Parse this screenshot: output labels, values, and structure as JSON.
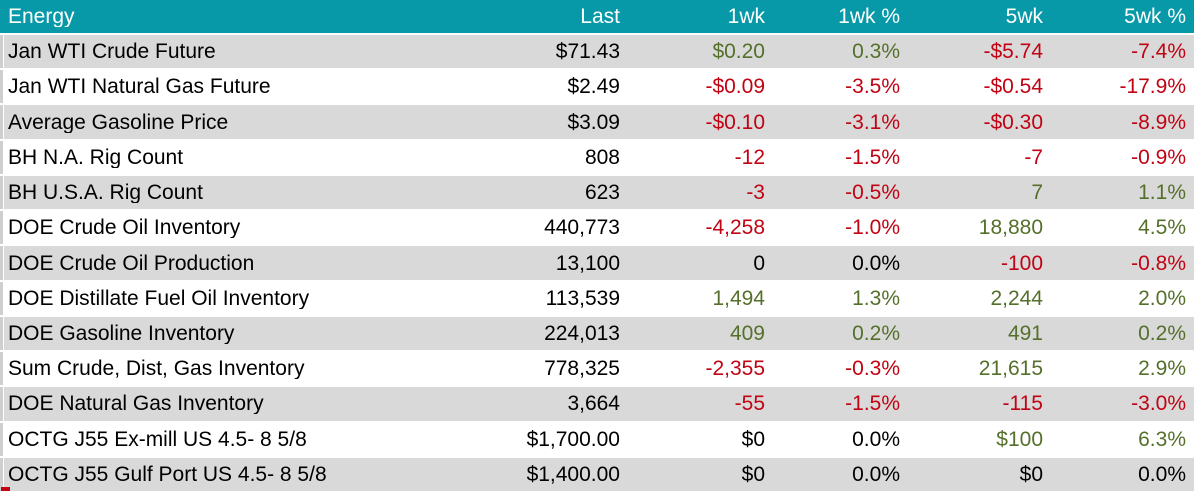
{
  "chart_data": {
    "type": "table",
    "title": "Energy",
    "columns": [
      "Energy",
      "Last",
      "1wk",
      "1wk %",
      "5wk",
      "5wk %"
    ],
    "rows": [
      [
        "Jan WTI Crude Future",
        71.43,
        0.2,
        0.3,
        -5.74,
        -7.4
      ],
      [
        "Jan WTI Natural Gas Future",
        2.49,
        -0.09,
        -3.5,
        -0.54,
        -17.9
      ],
      [
        "Average Gasoline Price",
        3.09,
        -0.1,
        -3.1,
        -0.3,
        -8.9
      ],
      [
        "BH N.A. Rig Count",
        808,
        -12,
        -1.5,
        -7,
        -0.9
      ],
      [
        "BH U.S.A. Rig Count",
        623,
        -3,
        -0.5,
        7,
        1.1
      ],
      [
        "DOE Crude Oil Inventory",
        440773,
        -4258,
        -1.0,
        18880,
        4.5
      ],
      [
        "DOE Crude Oil Production",
        13100,
        0,
        0.0,
        -100,
        -0.8
      ],
      [
        "DOE Distillate Fuel Oil Inventory",
        113539,
        1494,
        1.3,
        2244,
        2.0
      ],
      [
        "DOE Gasoline Inventory",
        224013,
        409,
        0.2,
        491,
        0.2
      ],
      [
        "Sum Crude, Dist, Gas Inventory",
        778325,
        -2355,
        -0.3,
        21615,
        2.9
      ],
      [
        "DOE Natural Gas Inventory",
        3664,
        -55,
        -1.5,
        -115,
        -3.0
      ],
      [
        "OCTG J55 Ex-mill US 4.5- 8 5/8",
        1700.0,
        0,
        0.0,
        100,
        6.3
      ],
      [
        "OCTG J55 Gulf Port US 4.5- 8 5/8",
        1400.0,
        0,
        0.0,
        0,
        0.0
      ]
    ]
  },
  "table": {
    "columns": [
      {
        "key": "name",
        "label": "Energy"
      },
      {
        "key": "last",
        "label": "Last"
      },
      {
        "key": "wk1",
        "label": "1wk"
      },
      {
        "key": "wk1pct",
        "label": "1wk %"
      },
      {
        "key": "wk5",
        "label": "5wk"
      },
      {
        "key": "wk5pct",
        "label": "5wk %"
      }
    ],
    "rows": [
      {
        "name": "Jan WTI Crude Future",
        "values": [
          {
            "text": "$71.43",
            "tone": "neutral"
          },
          {
            "text": "$0.20",
            "tone": "positive"
          },
          {
            "text": "0.3%",
            "tone": "positive"
          },
          {
            "text": "-$5.74",
            "tone": "negative"
          },
          {
            "text": "-7.4%",
            "tone": "negative"
          }
        ]
      },
      {
        "name": "Jan WTI Natural Gas Future",
        "values": [
          {
            "text": "$2.49",
            "tone": "neutral"
          },
          {
            "text": "-$0.09",
            "tone": "negative"
          },
          {
            "text": "-3.5%",
            "tone": "negative"
          },
          {
            "text": "-$0.54",
            "tone": "negative"
          },
          {
            "text": "-17.9%",
            "tone": "negative"
          }
        ]
      },
      {
        "name": "Average Gasoline Price",
        "values": [
          {
            "text": "$3.09",
            "tone": "neutral"
          },
          {
            "text": "-$0.10",
            "tone": "negative"
          },
          {
            "text": "-3.1%",
            "tone": "negative"
          },
          {
            "text": "-$0.30",
            "tone": "negative"
          },
          {
            "text": "-8.9%",
            "tone": "negative"
          }
        ]
      },
      {
        "name": "BH N.A. Rig Count",
        "values": [
          {
            "text": "808",
            "tone": "neutral"
          },
          {
            "text": "-12",
            "tone": "negative"
          },
          {
            "text": "-1.5%",
            "tone": "negative"
          },
          {
            "text": "-7",
            "tone": "negative"
          },
          {
            "text": "-0.9%",
            "tone": "negative"
          }
        ]
      },
      {
        "name": "BH U.S.A. Rig Count",
        "values": [
          {
            "text": "623",
            "tone": "neutral"
          },
          {
            "text": "-3",
            "tone": "negative"
          },
          {
            "text": "-0.5%",
            "tone": "negative"
          },
          {
            "text": "7",
            "tone": "positive"
          },
          {
            "text": "1.1%",
            "tone": "positive"
          }
        ]
      },
      {
        "name": "DOE Crude Oil Inventory",
        "values": [
          {
            "text": "440,773",
            "tone": "neutral"
          },
          {
            "text": "-4,258",
            "tone": "negative"
          },
          {
            "text": "-1.0%",
            "tone": "negative"
          },
          {
            "text": "18,880",
            "tone": "positive"
          },
          {
            "text": "4.5%",
            "tone": "positive"
          }
        ]
      },
      {
        "name": "DOE Crude Oil Production",
        "values": [
          {
            "text": "13,100",
            "tone": "neutral"
          },
          {
            "text": "0",
            "tone": "neutral"
          },
          {
            "text": "0.0%",
            "tone": "neutral"
          },
          {
            "text": "-100",
            "tone": "negative"
          },
          {
            "text": "-0.8%",
            "tone": "negative"
          }
        ]
      },
      {
        "name": "DOE Distillate Fuel Oil Inventory",
        "values": [
          {
            "text": "113,539",
            "tone": "neutral"
          },
          {
            "text": "1,494",
            "tone": "positive"
          },
          {
            "text": "1.3%",
            "tone": "positive"
          },
          {
            "text": "2,244",
            "tone": "positive"
          },
          {
            "text": "2.0%",
            "tone": "positive"
          }
        ]
      },
      {
        "name": "DOE Gasoline Inventory",
        "values": [
          {
            "text": "224,013",
            "tone": "neutral"
          },
          {
            "text": "409",
            "tone": "positive"
          },
          {
            "text": "0.2%",
            "tone": "positive"
          },
          {
            "text": "491",
            "tone": "positive"
          },
          {
            "text": "0.2%",
            "tone": "positive"
          }
        ]
      },
      {
        "name": "Sum Crude, Dist, Gas Inventory",
        "values": [
          {
            "text": "778,325",
            "tone": "neutral"
          },
          {
            "text": "-2,355",
            "tone": "negative"
          },
          {
            "text": "-0.3%",
            "tone": "negative"
          },
          {
            "text": "21,615",
            "tone": "positive"
          },
          {
            "text": "2.9%",
            "tone": "positive"
          }
        ]
      },
      {
        "name": "DOE Natural Gas Inventory",
        "values": [
          {
            "text": "3,664",
            "tone": "neutral"
          },
          {
            "text": "-55",
            "tone": "negative"
          },
          {
            "text": "-1.5%",
            "tone": "negative"
          },
          {
            "text": "-115",
            "tone": "negative"
          },
          {
            "text": "-3.0%",
            "tone": "negative"
          }
        ]
      },
      {
        "name": "OCTG J55 Ex-mill US 4.5- 8 5/8",
        "values": [
          {
            "text": "$1,700.00",
            "tone": "neutral"
          },
          {
            "text": "$0",
            "tone": "neutral"
          },
          {
            "text": "0.0%",
            "tone": "neutral"
          },
          {
            "text": "$100",
            "tone": "positive"
          },
          {
            "text": "6.3%",
            "tone": "positive"
          }
        ]
      },
      {
        "name": "OCTG J55 Gulf Port US 4.5- 8 5/8",
        "values": [
          {
            "text": "$1,400.00",
            "tone": "neutral"
          },
          {
            "text": "$0",
            "tone": "neutral"
          },
          {
            "text": "0.0%",
            "tone": "neutral"
          },
          {
            "text": "$0",
            "tone": "neutral"
          },
          {
            "text": "0.0%",
            "tone": "neutral"
          }
        ]
      }
    ],
    "colors": {
      "header_bg": "#0899A8",
      "header_text": "#FFFFFF",
      "stripe": "#D9D9D9",
      "positive": "#55702B",
      "negative": "#C10313",
      "text": "#000000"
    }
  }
}
